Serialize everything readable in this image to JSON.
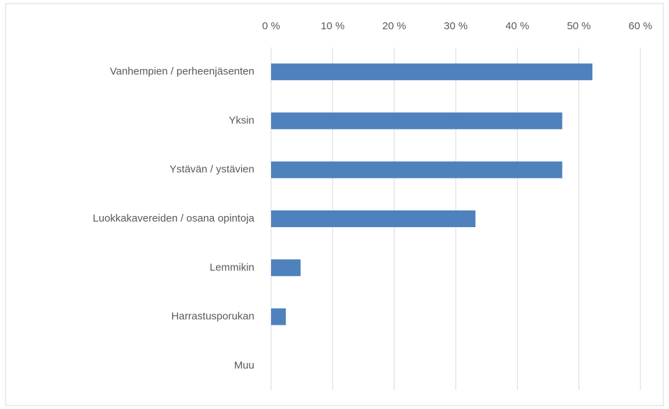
{
  "chart_data": {
    "type": "bar",
    "orientation": "horizontal",
    "categories": [
      "Vanhempien / perheenjäsenten",
      "Yksin",
      "Ystävän / ystävien",
      "Luokkakavereiden / osana opintoja",
      "Lemmikin",
      "Harrastusporukan",
      "Muu"
    ],
    "values": [
      52.2,
      47.3,
      47.3,
      33.2,
      4.8,
      2.4,
      0
    ],
    "color": "#4f81bd",
    "xlim": [
      0,
      60
    ],
    "xticks": [
      {
        "value": 0,
        "label": "0 %"
      },
      {
        "value": 10,
        "label": "10 %"
      },
      {
        "value": 20,
        "label": "20 %"
      },
      {
        "value": 30,
        "label": "30 %"
      },
      {
        "value": 40,
        "label": "40 %"
      },
      {
        "value": 50,
        "label": "50 %"
      },
      {
        "value": 60,
        "label": "60 %"
      }
    ],
    "grid": true
  }
}
